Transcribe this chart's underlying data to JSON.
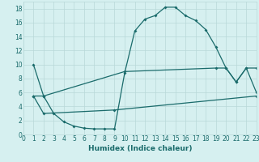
{
  "xlabel": "Humidex (Indice chaleur)",
  "x_ticks": [
    0,
    1,
    2,
    3,
    4,
    5,
    6,
    7,
    8,
    9,
    10,
    11,
    12,
    13,
    14,
    15,
    16,
    17,
    18,
    19,
    20,
    21,
    22,
    23
  ],
  "xlim": [
    0,
    23
  ],
  "ylim": [
    0,
    19
  ],
  "y_ticks": [
    0,
    2,
    4,
    6,
    8,
    10,
    12,
    14,
    16,
    18
  ],
  "bg_color": "#d6f0f0",
  "line_color": "#1a6b6b",
  "grid_color": "#b8d8d8",
  "line1_x": [
    1,
    2,
    3,
    4,
    5,
    6,
    7,
    8,
    9,
    10,
    11,
    12,
    13,
    14,
    15,
    16,
    17,
    18,
    19,
    20,
    21,
    22,
    23
  ],
  "line1_y": [
    10,
    5.5,
    3.0,
    1.8,
    1.2,
    0.9,
    0.8,
    0.8,
    0.8,
    8.8,
    14.8,
    16.5,
    17.0,
    18.2,
    18.2,
    17.0,
    16.3,
    15.0,
    12.5,
    9.5,
    7.5,
    9.5,
    6.0
  ],
  "line2_x": [
    1,
    2,
    10,
    19,
    20,
    21,
    22,
    23
  ],
  "line2_y": [
    5.5,
    5.5,
    9.0,
    9.5,
    9.5,
    7.5,
    9.5,
    9.5
  ],
  "line3_x": [
    1,
    2,
    9,
    23
  ],
  "line3_y": [
    5.5,
    3.0,
    3.5,
    5.5
  ]
}
